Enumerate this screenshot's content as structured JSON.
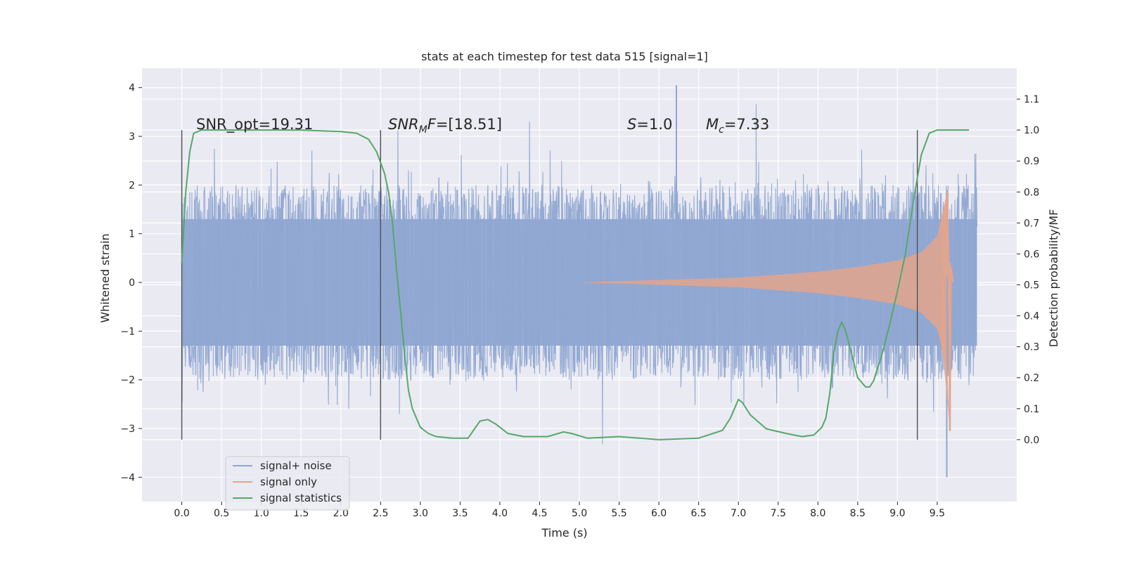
{
  "chart_data": {
    "type": "line",
    "title": "stats at each timestep for test data 515 [signal=1]",
    "xlabel": "Time (s)",
    "ylabel_left": "Whitened strain",
    "ylabel_right": "Detection probability/MF",
    "xlim": [
      -0.5,
      10.5
    ],
    "ylim_left": [
      -4.5,
      4.4
    ],
    "ylim_right": [
      -0.2,
      1.2
    ],
    "grid": true,
    "legend_position": "lower-left",
    "x_ticks": [
      "0.0",
      "0.5",
      "1.0",
      "1.5",
      "2.0",
      "2.5",
      "3.0",
      "3.5",
      "4.0",
      "4.5",
      "5.0",
      "5.5",
      "6.0",
      "6.5",
      "7.0",
      "7.5",
      "8.0",
      "8.5",
      "9.0",
      "9.5"
    ],
    "x_tick_values": [
      0.0,
      0.5,
      1.0,
      1.5,
      2.0,
      2.5,
      3.0,
      3.5,
      4.0,
      4.5,
      5.0,
      5.5,
      6.0,
      6.5,
      7.0,
      7.5,
      8.0,
      8.5,
      9.0,
      9.5
    ],
    "y_left_ticks": [
      "4",
      "3",
      "2",
      "1",
      "0",
      "−1",
      "−2",
      "−3",
      "−4"
    ],
    "y_left_tick_values": [
      4,
      3,
      2,
      1,
      0,
      -1,
      -2,
      -3,
      -4
    ],
    "y_right_ticks": [
      "1.1",
      "1.0",
      "0.9",
      "0.8",
      "0.7",
      "0.6",
      "0.5",
      "0.4",
      "0.3",
      "0.2",
      "0.1",
      "0.0"
    ],
    "y_right_tick_values": [
      1.1,
      1.0,
      0.9,
      0.8,
      0.7,
      0.6,
      0.5,
      0.4,
      0.3,
      0.2,
      0.1,
      0.0
    ],
    "annotations": {
      "snr_opt": "SNR_opt=19.31",
      "snr_mf_italic": "SNR",
      "snr_mf_sub": "M",
      "snr_mf_rest_italic": "F",
      "snr_mf_value": "=[18.51]",
      "s_label": "S",
      "s_value": "=1.0",
      "mc_label": "M",
      "mc_sub": "c",
      "mc_value": "=7.33"
    },
    "vertical_lines_x": [
      0.0,
      2.5,
      9.25
    ],
    "series": [
      {
        "name": "signal+ noise",
        "color": "#8fa6d2",
        "x_start": 0.0,
        "x_end": 10.0,
        "envelope_positive": 1.3,
        "envelope_negative": -1.3,
        "typical_peaks": [
          2.3,
          -2.3
        ],
        "extremes": [
          4.05,
          -4.0
        ]
      },
      {
        "name": "signal only",
        "color": "#e3a58c",
        "x_start": 5.0,
        "x_end": 9.7,
        "amplitude_points": [
          [
            5.0,
            0.0
          ],
          [
            6.0,
            0.05
          ],
          [
            7.0,
            0.1
          ],
          [
            8.0,
            0.22
          ],
          [
            8.5,
            0.32
          ],
          [
            9.0,
            0.45
          ],
          [
            9.3,
            0.62
          ],
          [
            9.5,
            0.95
          ],
          [
            9.63,
            1.9
          ],
          [
            9.66,
            -3.05
          ],
          [
            9.7,
            0.0
          ]
        ]
      },
      {
        "name": "signal statistics",
        "color": "#55a868",
        "x": [
          0.0,
          0.05,
          0.1,
          0.15,
          0.25,
          0.5,
          1.0,
          1.5,
          2.0,
          2.2,
          2.35,
          2.45,
          2.55,
          2.6,
          2.65,
          2.7,
          2.75,
          2.8,
          2.85,
          2.9,
          3.0,
          3.1,
          3.2,
          3.4,
          3.6,
          3.75,
          3.85,
          3.95,
          4.1,
          4.3,
          4.6,
          4.8,
          4.9,
          5.1,
          5.5,
          6.0,
          6.5,
          6.8,
          6.9,
          6.95,
          7.0,
          7.05,
          7.15,
          7.35,
          7.6,
          7.8,
          7.95,
          8.05,
          8.1,
          8.15,
          8.2,
          8.25,
          8.3,
          8.35,
          8.4,
          8.45,
          8.5,
          8.6,
          8.65,
          8.7,
          8.8,
          8.9,
          9.0,
          9.1,
          9.2,
          9.3,
          9.4,
          9.5,
          9.6,
          9.7,
          9.8,
          9.9
        ],
        "y": [
          0.57,
          0.8,
          0.93,
          0.99,
          1.0,
          1.0,
          1.0,
          1.0,
          0.995,
          0.99,
          0.97,
          0.93,
          0.86,
          0.8,
          0.7,
          0.55,
          0.42,
          0.28,
          0.16,
          0.1,
          0.04,
          0.02,
          0.01,
          0.005,
          0.005,
          0.06,
          0.065,
          0.05,
          0.02,
          0.01,
          0.01,
          0.025,
          0.02,
          0.005,
          0.01,
          0.0,
          0.005,
          0.03,
          0.07,
          0.1,
          0.13,
          0.12,
          0.08,
          0.035,
          0.02,
          0.01,
          0.015,
          0.04,
          0.07,
          0.15,
          0.28,
          0.35,
          0.38,
          0.35,
          0.3,
          0.25,
          0.2,
          0.17,
          0.17,
          0.19,
          0.27,
          0.37,
          0.48,
          0.6,
          0.77,
          0.92,
          0.99,
          1.0,
          1.0,
          1.0,
          1.0,
          1.0
        ]
      }
    ]
  },
  "colors": {
    "background": "#eaeaf2",
    "grid": "#ffffff",
    "text": "#262626",
    "vline": "#505050"
  }
}
